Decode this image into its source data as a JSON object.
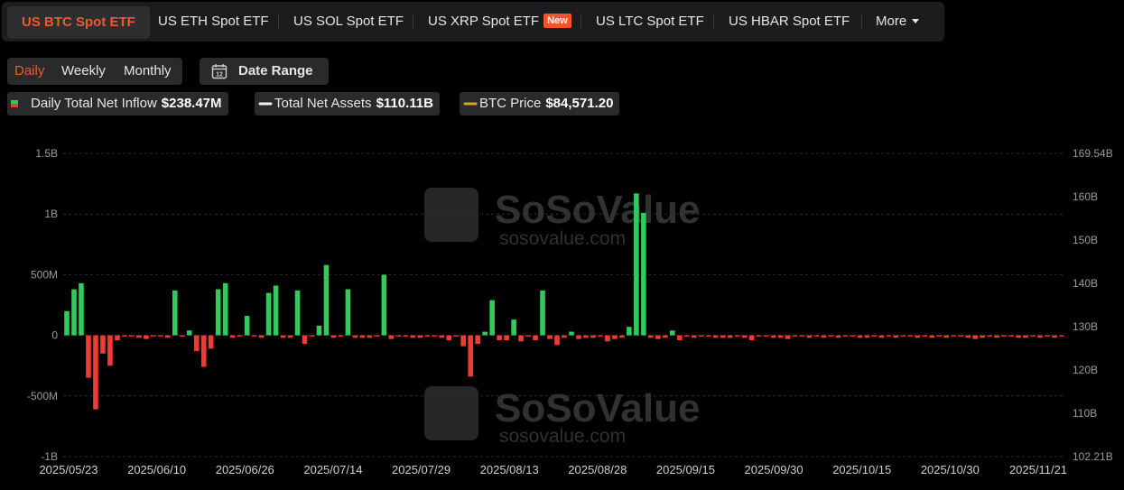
{
  "tabs": [
    {
      "label": "US BTC Spot ETF",
      "active": true
    },
    {
      "label": "US ETH Spot ETF"
    },
    {
      "label": "US SOL Spot ETF"
    },
    {
      "label": "US XRP Spot ETF",
      "badge": "New"
    },
    {
      "label": "US LTC Spot ETF"
    },
    {
      "label": "US HBAR Spot ETF"
    },
    {
      "label": "More"
    }
  ],
  "periods": [
    "Daily",
    "Weekly",
    "Monthly"
  ],
  "active_period": "Daily",
  "date_range_label": "Date Range",
  "date_range_icon": "12",
  "stats": {
    "inflow": {
      "label": "Daily Total Net Inflow",
      "value": "$238.47M"
    },
    "assets": {
      "label": "Total Net Assets",
      "value": "$110.11B"
    },
    "price": {
      "label": "BTC Price",
      "value": "$84,571.20"
    }
  },
  "watermark": {
    "brand": "SoSoValue",
    "url": "sosovalue.com"
  },
  "colors": {
    "accent": "#f05a2a",
    "inflow_pos": "#2ecc5b",
    "inflow_neg": "#f23a35",
    "assets_line": "#f2f2f2",
    "price_line": "#d9a020"
  },
  "chart_data": {
    "type": "bar+line",
    "x_ticks": [
      "2025/05/23",
      "2025/06/10",
      "2025/06/26",
      "2025/07/14",
      "2025/07/29",
      "2025/08/13",
      "2025/08/28",
      "2025/09/15",
      "2025/09/30",
      "2025/10/15",
      "2025/10/30",
      "2025/11/21"
    ],
    "y_left_ticks": [
      "1.5B",
      "1B",
      "500M",
      "0",
      "-500M",
      "-1B"
    ],
    "y_left_range": [
      -1000,
      1500
    ],
    "y_right_ticks": [
      "169.54B",
      "160B",
      "150B",
      "140B",
      "130B",
      "120B",
      "110B",
      "102.21B"
    ],
    "y_right_range": [
      102.21,
      169.54
    ],
    "series": [
      {
        "name": "Daily Total Net Inflow",
        "unit": "M USD",
        "kind": "bar",
        "values": [
          200,
          380,
          430,
          -350,
          -610,
          -150,
          -250,
          -40,
          -10,
          -10,
          -20,
          -30,
          -10,
          -10,
          -20,
          370,
          -10,
          40,
          -130,
          -260,
          -110,
          380,
          430,
          -20,
          -10,
          160,
          -10,
          -20,
          350,
          410,
          -20,
          -20,
          370,
          -70,
          -10,
          80,
          580,
          -20,
          -10,
          380,
          -20,
          -20,
          -20,
          -10,
          500,
          -30,
          -10,
          -10,
          -20,
          -20,
          -10,
          -10,
          -20,
          -40,
          -10,
          -90,
          -340,
          -70,
          30,
          290,
          -40,
          -40,
          130,
          -50,
          -10,
          -40,
          370,
          -30,
          -80,
          -20,
          30,
          -30,
          -20,
          -20,
          -10,
          -50,
          -30,
          -20,
          70,
          1170,
          1010,
          -20,
          -30,
          -20,
          40,
          -40,
          -10,
          -20,
          -10,
          -10,
          -20,
          -20,
          -20,
          -10,
          -20,
          -40,
          -10,
          -10,
          -20,
          -20,
          -30,
          -10,
          -10,
          -20,
          -10,
          -20,
          -10,
          -20,
          -10,
          -10,
          -20,
          -20,
          -10,
          -20,
          -10,
          -20,
          -10,
          -10,
          -20,
          -10,
          -20,
          -10,
          -20,
          -10,
          -10,
          -20,
          -30,
          -20,
          -10,
          -20,
          -10,
          -10,
          -20,
          -20,
          -10,
          -20,
          -10,
          -20,
          -10
        ]
      }
    ]
  }
}
